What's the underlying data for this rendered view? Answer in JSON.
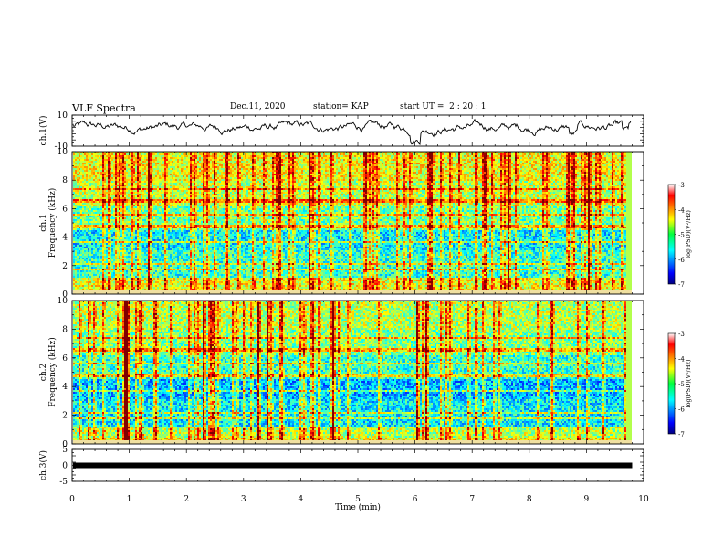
{
  "header": {
    "title": "VLF Spectra",
    "date": "Dec.11, 2020",
    "station": "station= KAP",
    "start_ut_label": "start UT =",
    "start_ut_value": "2 : 20 : 1"
  },
  "chart_data": [
    {
      "type": "line",
      "ylabel": "ch.1(V)",
      "ylim": [
        -10,
        10
      ],
      "y_ticks": [
        "10",
        "-10"
      ],
      "x_range": [
        0,
        10
      ],
      "trace_end_min": 9.8,
      "color": "#000000"
    },
    {
      "type": "heatmap",
      "ylabel": "ch.1 Frequency (kHz)",
      "ylim": [
        0,
        10
      ],
      "y_ticks": [
        "0",
        "2",
        "4",
        "6",
        "8",
        "10"
      ],
      "x_range": [
        0,
        10
      ],
      "colorbar": {
        "label": "log(PSD)(V²/Hz)",
        "range": [
          -7,
          -3
        ],
        "ticks": [
          "-3",
          "-4",
          "-5",
          "-6",
          "-7"
        ],
        "colormap": "jet"
      }
    },
    {
      "type": "heatmap",
      "ylabel": "ch.2 Frequency (kHz)",
      "ylim": [
        0,
        10
      ],
      "y_ticks": [
        "0",
        "2",
        "4",
        "6",
        "8",
        "10"
      ],
      "x_range": [
        0,
        10
      ],
      "colorbar": {
        "label": "log(PSD)(V²/Hz)",
        "range": [
          -7,
          -3
        ],
        "ticks": [
          "-3",
          "-4",
          "-5",
          "-6",
          "-7"
        ],
        "colormap": "jet"
      }
    },
    {
      "type": "line",
      "ylabel": "ch.3(V)",
      "ylim": [
        -5,
        5
      ],
      "y_ticks": [
        "5",
        "0",
        "-5"
      ],
      "x_range": [
        0,
        10
      ],
      "trace_end_min": 9.8,
      "color": "#000000"
    }
  ],
  "x_axis": {
    "label": "Time (min)",
    "ticks": [
      "0",
      "1",
      "2",
      "3",
      "4",
      "5",
      "6",
      "7",
      "8",
      "9",
      "10"
    ]
  }
}
